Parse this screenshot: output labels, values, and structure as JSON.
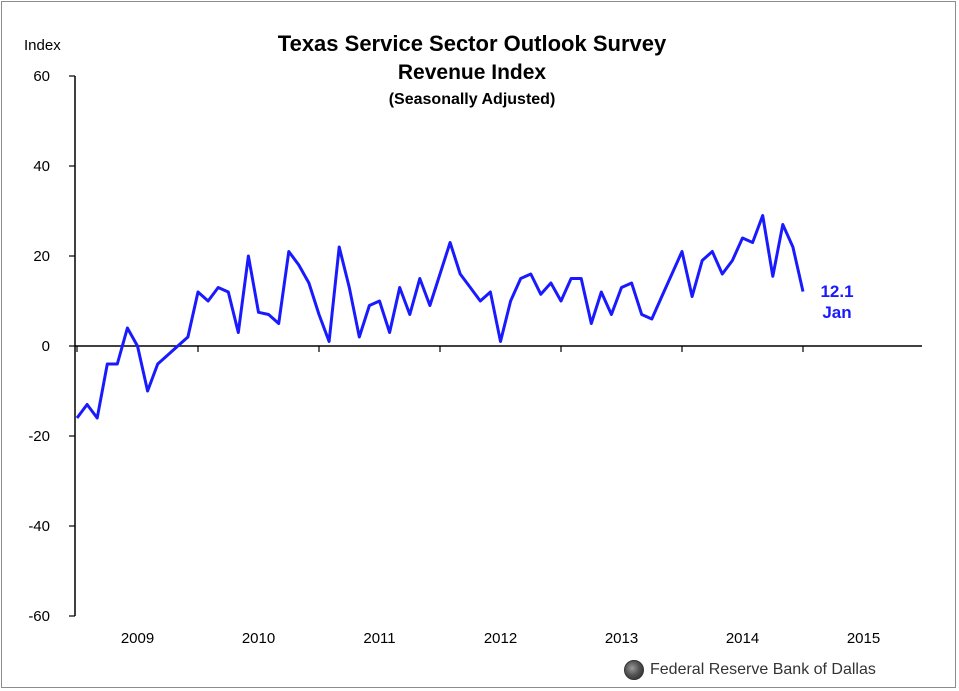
{
  "chart_data": {
    "type": "line",
    "title": "Texas Service Sector Outlook Survey",
    "subtitle": "Revenue Index",
    "subtitle2": "(Seasonally Adjusted)",
    "ylabel": "Index",
    "ylim": [
      -60,
      60
    ],
    "yticks": [
      "60",
      "40",
      "20",
      "0",
      "-20",
      "-40",
      "-60"
    ],
    "xticks": [
      "2009",
      "2010",
      "2011",
      "2012",
      "2013",
      "2014",
      "2015"
    ],
    "x_start": "2008-01",
    "grid": false,
    "line_color": "#1a1aff",
    "series": [
      {
        "values": [
          -16,
          -13,
          -16,
          -4,
          -4,
          4,
          0,
          -10,
          -4,
          -2,
          0,
          2,
          12,
          10,
          13,
          12,
          3,
          20,
          7.5,
          7,
          5,
          21,
          18,
          14,
          7,
          1,
          22,
          13,
          2,
          9,
          10,
          3,
          13,
          7,
          15,
          9,
          16,
          23,
          16,
          13,
          10,
          12,
          1,
          10,
          15,
          16,
          11.5,
          14,
          10,
          15,
          15,
          5,
          12,
          7,
          13,
          14,
          7,
          6,
          11,
          16,
          21,
          11,
          19,
          21,
          16,
          19,
          24,
          23,
          29,
          15.5,
          27,
          22,
          12.1
        ]
      }
    ],
    "annotation": {
      "value": "12.1",
      "month": "Jan"
    }
  },
  "footer": {
    "source": "Federal Reserve Bank of Dallas",
    "seal_icon": "seal-icon"
  }
}
